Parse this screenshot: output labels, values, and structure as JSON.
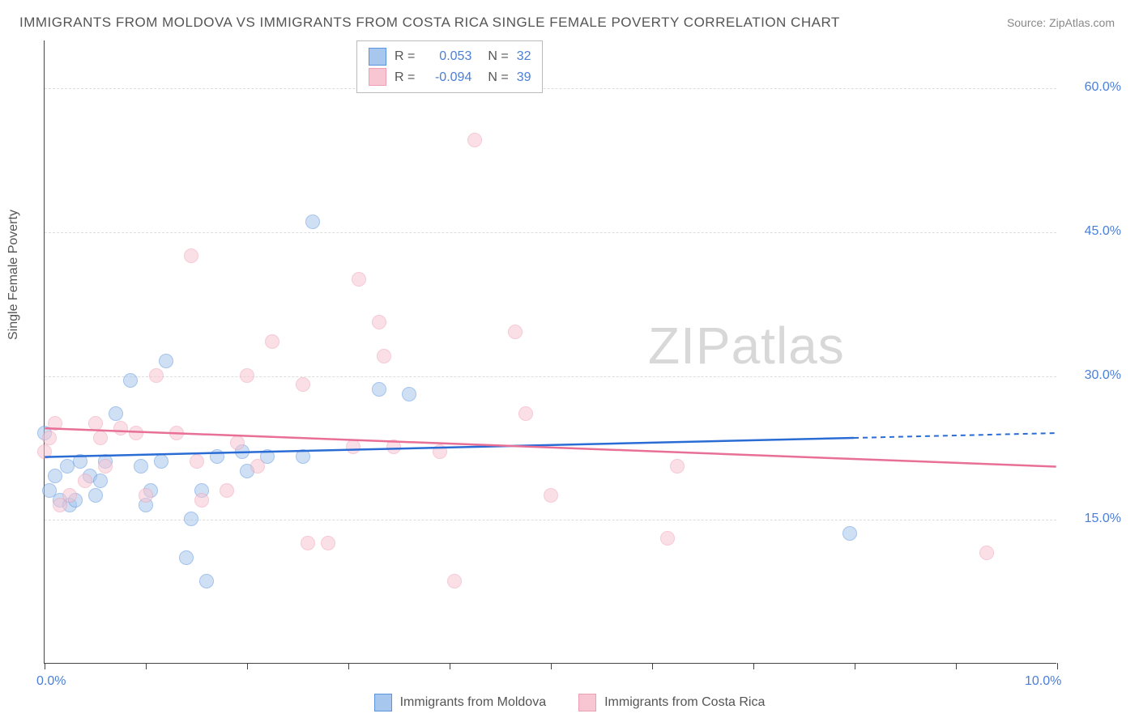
{
  "title": "IMMIGRANTS FROM MOLDOVA VS IMMIGRANTS FROM COSTA RICA SINGLE FEMALE POVERTY CORRELATION CHART",
  "source": "Source: ZipAtlas.com",
  "ylabel": "Single Female Poverty",
  "watermark_bold": "ZIP",
  "watermark_thin": "atlas",
  "chart": {
    "type": "scatter",
    "xlim": [
      0,
      10
    ],
    "ylim": [
      0,
      65
    ],
    "x_ticks": [
      0,
      1,
      2,
      3,
      4,
      5,
      6,
      7,
      8,
      9,
      10
    ],
    "x_tick_labels_shown": {
      "0": "0.0%",
      "10": "10.0%"
    },
    "y_gridlines": [
      15,
      30,
      45,
      60
    ],
    "y_tick_labels": {
      "15": "15.0%",
      "30": "30.0%",
      "45": "45.0%",
      "60": "60.0%"
    },
    "background_color": "#ffffff",
    "grid_color": "#dddddd",
    "axis_color": "#444444",
    "point_radius": 9,
    "point_opacity": 0.55,
    "label_fontsize": 16,
    "title_fontsize": 17,
    "tick_label_color": "#4a7fd8"
  },
  "series": [
    {
      "name": "Immigrants from Moldova",
      "fill": "#a8c7ee",
      "stroke": "#5b93de",
      "line_color": "#2a6cd4",
      "R": "0.053",
      "N": "32",
      "trend": {
        "x1": 0,
        "y1": 21.5,
        "x2": 8.0,
        "y2": 23.5,
        "dash_from_x": 8.0,
        "x3": 10.0,
        "y3": 24.0
      },
      "points": [
        [
          0.0,
          24.0
        ],
        [
          0.05,
          18.0
        ],
        [
          0.1,
          19.5
        ],
        [
          0.15,
          17.0
        ],
        [
          0.22,
          20.5
        ],
        [
          0.25,
          16.5
        ],
        [
          0.3,
          17.0
        ],
        [
          0.35,
          21.0
        ],
        [
          0.45,
          19.5
        ],
        [
          0.5,
          17.5
        ],
        [
          0.55,
          19.0
        ],
        [
          0.6,
          21.0
        ],
        [
          0.7,
          26.0
        ],
        [
          0.85,
          29.5
        ],
        [
          0.95,
          20.5
        ],
        [
          1.0,
          16.5
        ],
        [
          1.05,
          18.0
        ],
        [
          1.15,
          21.0
        ],
        [
          1.2,
          31.5
        ],
        [
          1.4,
          11.0
        ],
        [
          1.45,
          15.0
        ],
        [
          1.55,
          18.0
        ],
        [
          1.6,
          8.5
        ],
        [
          1.7,
          21.5
        ],
        [
          1.95,
          22.0
        ],
        [
          2.0,
          20.0
        ],
        [
          2.2,
          21.5
        ],
        [
          2.55,
          21.5
        ],
        [
          2.65,
          46.0
        ],
        [
          3.3,
          28.5
        ],
        [
          3.6,
          28.0
        ],
        [
          7.95,
          13.5
        ]
      ]
    },
    {
      "name": "Immigrants from Costa Rica",
      "fill": "#f7c6d2",
      "stroke": "#ef9fb5",
      "line_color": "#e86f95",
      "R": "-0.094",
      "N": "39",
      "trend": {
        "x1": 0,
        "y1": 24.5,
        "x2": 10.0,
        "y2": 20.5
      },
      "points": [
        [
          0.0,
          22.0
        ],
        [
          0.05,
          23.5
        ],
        [
          0.1,
          25.0
        ],
        [
          0.15,
          16.5
        ],
        [
          0.25,
          17.5
        ],
        [
          0.4,
          19.0
        ],
        [
          0.5,
          25.0
        ],
        [
          0.55,
          23.5
        ],
        [
          0.6,
          20.5
        ],
        [
          0.75,
          24.5
        ],
        [
          0.9,
          24.0
        ],
        [
          1.0,
          17.5
        ],
        [
          1.1,
          30.0
        ],
        [
          1.3,
          24.0
        ],
        [
          1.45,
          42.5
        ],
        [
          1.5,
          21.0
        ],
        [
          1.55,
          17.0
        ],
        [
          1.8,
          18.0
        ],
        [
          1.9,
          23.0
        ],
        [
          2.0,
          30.0
        ],
        [
          2.1,
          20.5
        ],
        [
          2.25,
          33.5
        ],
        [
          2.55,
          29.0
        ],
        [
          2.6,
          12.5
        ],
        [
          2.8,
          12.5
        ],
        [
          3.05,
          22.5
        ],
        [
          3.1,
          40.0
        ],
        [
          3.3,
          35.5
        ],
        [
          3.35,
          32.0
        ],
        [
          3.45,
          22.5
        ],
        [
          3.9,
          22.0
        ],
        [
          4.05,
          8.5
        ],
        [
          4.25,
          54.5
        ],
        [
          4.65,
          34.5
        ],
        [
          4.75,
          26.0
        ],
        [
          5.0,
          17.5
        ],
        [
          6.15,
          13.0
        ],
        [
          6.25,
          20.5
        ],
        [
          9.3,
          11.5
        ]
      ]
    }
  ],
  "legend_top_labels": {
    "R": "R",
    "N": "N",
    "eq": "="
  },
  "legend_bottom": [
    "Immigrants from Moldova",
    "Immigrants from Costa Rica"
  ]
}
